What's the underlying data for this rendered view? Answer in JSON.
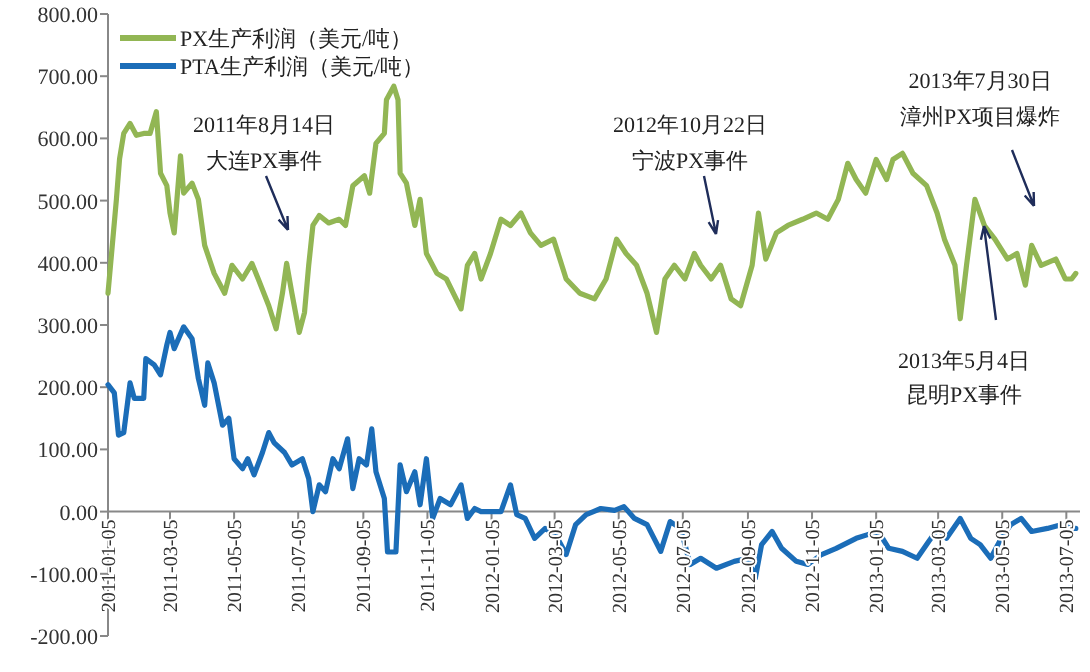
{
  "chart_data": {
    "type": "line",
    "legend": "top left",
    "xlim": [
      "2011-01-05",
      "2013-07-18"
    ],
    "ylim": [
      -200,
      800
    ],
    "yticks": [
      {
        "value": 800,
        "label": "800.00"
      },
      {
        "value": 700,
        "label": "700.00"
      },
      {
        "value": 600,
        "label": "600.00"
      },
      {
        "value": 500,
        "label": "500.00"
      },
      {
        "value": 400,
        "label": "400.00"
      },
      {
        "value": 300,
        "label": "300.00"
      },
      {
        "value": 200,
        "label": "200.00"
      },
      {
        "value": 100,
        "label": "100.00"
      },
      {
        "value": 0,
        "label": "0.00"
      },
      {
        "value": -100,
        "label": "-100.00"
      },
      {
        "value": -200,
        "label": "-200.00"
      }
    ],
    "xticks": [
      "2011-01-05",
      "2011-03-05",
      "2011-05-05",
      "2011-07-05",
      "2011-09-05",
      "2011-11-05",
      "2012-01-05",
      "2012-03-05",
      "2012-05-05",
      "2012-07-05",
      "2012-09-05",
      "2012-11-05",
      "2013-01-05",
      "2013-03-05",
      "2013-05-05",
      "2013-07-05"
    ],
    "annotations": [
      "2011年8月14日",
      "大连PX事件",
      "2012年10月22日",
      "宁波PX事件",
      "2013年7月30日",
      "漳州PX项目爆炸",
      "2013年5月4日",
      "昆明PX事件"
    ],
    "series": [
      {
        "name": "PX生产利润（美元/吨）",
        "color": "#92b654",
        "x": [
          "2011-01-05",
          "2011-01-13",
          "2011-01-16",
          "2011-01-20",
          "2011-01-26",
          "2011-02-01",
          "2011-02-08",
          "2011-02-14",
          "2011-02-20",
          "2011-02-24",
          "2011-03-02",
          "2011-03-05",
          "2011-03-09",
          "2011-03-15",
          "2011-03-18",
          "2011-03-26",
          "2011-04-01",
          "2011-04-07",
          "2011-04-16",
          "2011-04-26",
          "2011-05-03",
          "2011-05-13",
          "2011-05-22",
          "2011-05-28",
          "2011-06-07",
          "2011-06-14",
          "2011-06-20",
          "2011-06-24",
          "2011-06-29",
          "2011-07-06",
          "2011-07-11",
          "2011-07-15",
          "2011-07-19",
          "2011-07-25",
          "2011-08-03",
          "2011-08-13",
          "2011-08-19",
          "2011-08-26",
          "2011-09-06",
          "2011-09-11",
          "2011-09-17",
          "2011-09-25",
          "2011-09-27",
          "2011-10-04",
          "2011-10-08",
          "2011-10-10",
          "2011-10-16",
          "2011-10-24",
          "2011-10-29",
          "2011-11-04",
          "2011-11-14",
          "2011-11-23",
          "2011-12-07",
          "2011-12-13",
          "2011-12-20",
          "2011-12-26",
          "2012-01-04",
          "2012-01-14",
          "2012-01-23",
          "2012-02-02",
          "2012-02-11",
          "2012-02-21",
          "2012-03-04",
          "2012-03-16",
          "2012-03-29",
          "2012-04-12",
          "2012-04-23",
          "2012-05-03",
          "2012-05-12",
          "2012-05-22",
          "2012-06-01",
          "2012-06-10",
          "2012-06-18",
          "2012-06-27",
          "2012-07-07",
          "2012-07-16",
          "2012-07-22",
          "2012-08-01",
          "2012-08-10",
          "2012-08-20",
          "2012-08-29",
          "2012-09-09",
          "2012-09-15",
          "2012-09-22",
          "2012-10-02",
          "2012-10-13",
          "2012-10-27",
          "2012-11-09",
          "2012-11-20",
          "2012-11-30",
          "2012-12-09",
          "2012-12-17",
          "2012-12-26",
          "2013-01-05",
          "2013-01-15",
          "2013-01-21",
          "2013-01-30",
          "2013-02-09",
          "2013-02-22",
          "2013-03-04",
          "2013-03-11",
          "2013-03-21",
          "2013-03-26",
          "2013-04-01",
          "2013-04-09",
          "2013-04-18",
          "2013-04-28",
          "2013-05-10",
          "2013-05-19",
          "2013-05-27",
          "2013-06-02",
          "2013-06-11",
          "2013-06-25",
          "2013-07-04",
          "2013-07-10",
          "2013-07-14"
        ],
        "values": [
          351,
          502,
          567,
          608,
          624,
          605,
          608,
          608,
          643,
          544,
          524,
          480,
          448,
          572,
          512,
          528,
          502,
          428,
          383,
          351,
          396,
          374,
          399,
          374,
          331,
          294,
          351,
          399,
          351,
          288,
          320,
          396,
          460,
          476,
          464,
          470,
          460,
          524,
          540,
          512,
          592,
          608,
          662,
          684,
          662,
          544,
          528,
          460,
          502,
          415,
          383,
          374,
          326,
          396,
          415,
          374,
          415,
          470,
          460,
          480,
          448,
          428,
          438,
          374,
          351,
          342,
          374,
          438,
          415,
          396,
          351,
          288,
          374,
          396,
          374,
          415,
          396,
          374,
          396,
          342,
          331,
          396,
          480,
          406,
          448,
          460,
          470,
          480,
          470,
          502,
          560,
          534,
          512,
          566,
          534,
          566,
          576,
          544,
          524,
          480,
          438,
          396,
          310,
          396,
          502,
          460,
          438,
          406,
          415,
          364,
          428,
          396,
          406,
          374,
          374,
          383
        ]
      },
      {
        "name": "PTA生产利润（美元/吨）",
        "color": "#1b6db8",
        "x": [
          "2011-01-05",
          "2011-01-11",
          "2011-01-15",
          "2011-01-20",
          "2011-01-26",
          "2011-01-30",
          "2011-02-08",
          "2011-02-10",
          "2011-02-18",
          "2011-02-24",
          "2011-03-02",
          "2011-03-05",
          "2011-03-09",
          "2011-03-18",
          "2011-03-26",
          "2011-04-01",
          "2011-04-07",
          "2011-04-10",
          "2011-04-16",
          "2011-04-24",
          "2011-04-30",
          "2011-05-05",
          "2011-05-13",
          "2011-05-18",
          "2011-05-24",
          "2011-06-01",
          "2011-06-07",
          "2011-06-12",
          "2011-06-22",
          "2011-06-29",
          "2011-07-09",
          "2011-07-15",
          "2011-07-19",
          "2011-07-25",
          "2011-07-31",
          "2011-08-07",
          "2011-08-13",
          "2011-08-21",
          "2011-08-26",
          "2011-09-01",
          "2011-09-08",
          "2011-09-13",
          "2011-09-17",
          "2011-09-25",
          "2011-09-28",
          "2011-10-06",
          "2011-10-10",
          "2011-10-16",
          "2011-10-24",
          "2011-10-29",
          "2011-11-04",
          "2011-11-10",
          "2011-11-17",
          "2011-11-27",
          "2011-12-07",
          "2011-12-13",
          "2011-12-20",
          "2011-12-26",
          "2012-01-04",
          "2012-01-14",
          "2012-01-23",
          "2012-01-29",
          "2012-02-06",
          "2012-02-15",
          "2012-02-25",
          "2012-03-06",
          "2012-03-16",
          "2012-03-25",
          "2012-04-04",
          "2012-04-18",
          "2012-05-01",
          "2012-05-10",
          "2012-05-20",
          "2012-06-01",
          "2012-06-14",
          "2012-06-23",
          "2012-07-03",
          "2012-07-12",
          "2012-07-22",
          "2012-08-06",
          "2012-08-23",
          "2012-09-05",
          "2012-09-12",
          "2012-09-18",
          "2012-09-28",
          "2012-10-07",
          "2012-10-21",
          "2012-11-01",
          "2012-11-14",
          "2012-11-28",
          "2012-12-17",
          "2012-12-28",
          "2013-01-07",
          "2013-01-17",
          "2013-01-30",
          "2013-02-13",
          "2013-02-24",
          "2013-03-05",
          "2013-03-13",
          "2013-03-26",
          "2013-04-05",
          "2013-04-14",
          "2013-04-24",
          "2013-05-04",
          "2013-05-13",
          "2013-05-23",
          "2013-06-02",
          "2013-06-17",
          "2013-06-30",
          "2013-07-10",
          "2013-07-14"
        ],
        "values": [
          204,
          191,
          123,
          127,
          207,
          182,
          182,
          246,
          236,
          220,
          268,
          288,
          262,
          297,
          278,
          214,
          171,
          239,
          207,
          139,
          150,
          85,
          69,
          85,
          59,
          95,
          127,
          111,
          95,
          75,
          85,
          53,
          0,
          43,
          32,
          85,
          69,
          117,
          37,
          85,
          75,
          133,
          64,
          21,
          -65,
          -65,
          75,
          32,
          64,
          11,
          85,
          -11,
          21,
          11,
          43,
          -11,
          5,
          0,
          0,
          0,
          43,
          -5,
          -11,
          -43,
          -27,
          -37,
          -69,
          -21,
          -5,
          5,
          2,
          8,
          -11,
          -21,
          -64,
          -16,
          -27,
          -85,
          -75,
          -91,
          -80,
          -75,
          -107,
          -53,
          -32,
          -59,
          -80,
          -85,
          -69,
          -59,
          -43,
          -37,
          -32,
          -59,
          -64,
          -75,
          -48,
          -27,
          -43,
          -11,
          -43,
          -53,
          -75,
          -43,
          -21,
          -11,
          -32,
          -27,
          -21,
          -27,
          -27
        ]
      }
    ]
  }
}
